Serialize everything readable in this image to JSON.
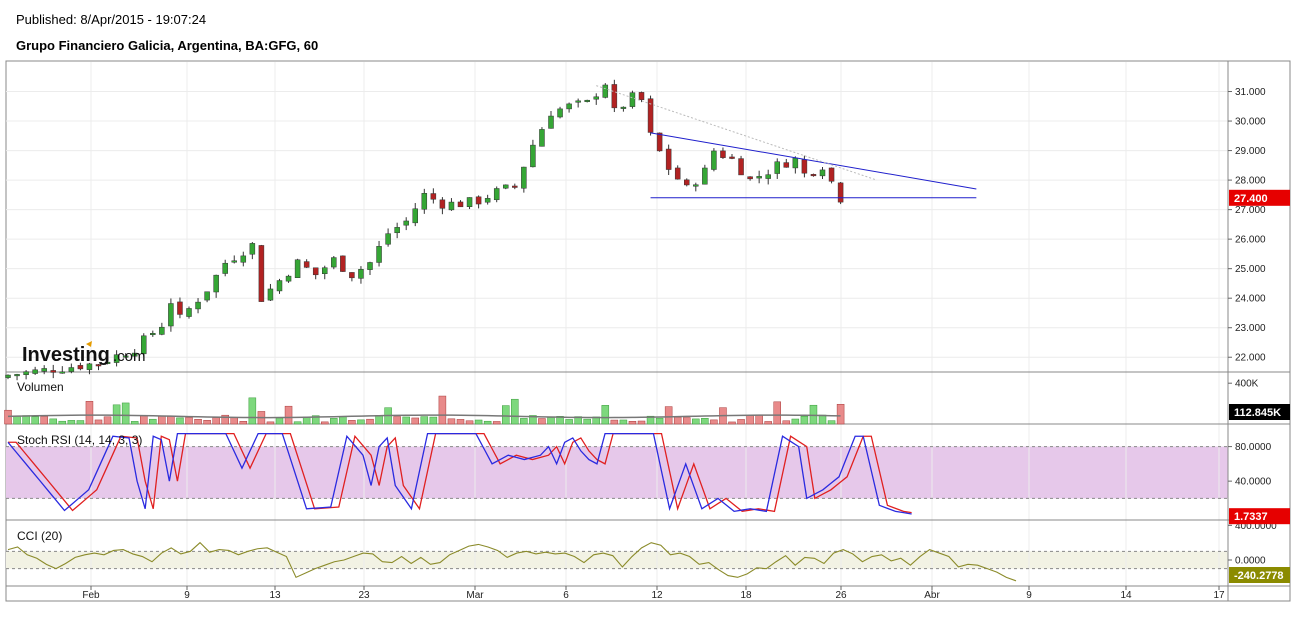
{
  "header": {
    "published": "Published: 8/Apr/2015 - 19:07:24",
    "title": "Grupo Financiero Galicia, Argentina, BA:GFG, 60"
  },
  "logo": {
    "brand": "Investing",
    "suffix": ".com"
  },
  "colors": {
    "up": "#35a635",
    "down": "#b22222",
    "trend": "#1f1fcc",
    "stoch_k": "#2a2ae0",
    "stoch_d": "#e02020",
    "cci": "#8b8b2a",
    "price_badge": "#e60000",
    "stoch_badge": "#e60000",
    "cci_badge": "#8b8b00",
    "vol_badge": "#000000",
    "stoch_band": "#e6c8ea"
  },
  "chart_data": [
    {
      "type": "candlestick",
      "title": "Grupo Financiero Galicia, Argentina, BA:GFG, 60",
      "ylim": [
        21.5,
        32.0
      ],
      "y_ticks": [
        "22.000",
        "23.000",
        "24.000",
        "25.000",
        "26.000",
        "27.000",
        "28.000",
        "29.000",
        "30.000",
        "31.000"
      ],
      "x_ticks": [
        "Feb",
        "9",
        "13",
        "23",
        "Mar",
        "6",
        "12",
        "18",
        "26",
        "Abr",
        "9",
        "14",
        "17"
      ],
      "last_value": "27.400",
      "close_path": [
        [
          0,
          21.4
        ],
        [
          10,
          21.8
        ],
        [
          14,
          22.3
        ],
        [
          17,
          23.1
        ],
        [
          18,
          23.9
        ],
        [
          19,
          23.3
        ],
        [
          22,
          24.3
        ],
        [
          24,
          25.2
        ],
        [
          27,
          25.8
        ],
        [
          28,
          24.0
        ],
        [
          30,
          24.6
        ],
        [
          32,
          25.2
        ],
        [
          34,
          24.8
        ],
        [
          36,
          25.3
        ],
        [
          38,
          24.8
        ],
        [
          40,
          25.2
        ],
        [
          42,
          26.2
        ],
        [
          44,
          26.6
        ],
        [
          46,
          27.5
        ],
        [
          48,
          27.2
        ],
        [
          50,
          27.2
        ],
        [
          52,
          27.3
        ],
        [
          54,
          27.6
        ],
        [
          56,
          27.8
        ],
        [
          58,
          29.2
        ],
        [
          60,
          30.3
        ],
        [
          62,
          30.5
        ],
        [
          64,
          30.6
        ],
        [
          66,
          31.3
        ],
        [
          67,
          30.3
        ],
        [
          69,
          30.8
        ],
        [
          70,
          30.7
        ],
        [
          71,
          29.5
        ],
        [
          73,
          28.4
        ],
        [
          75,
          27.7
        ],
        [
          77,
          28.3
        ],
        [
          78,
          29.0
        ],
        [
          80,
          28.7
        ],
        [
          82,
          28.0
        ],
        [
          84,
          28.3
        ],
        [
          85,
          28.5
        ],
        [
          87,
          28.7
        ],
        [
          88,
          28.2
        ],
        [
          90,
          28.5
        ],
        [
          92,
          27.4
        ]
      ],
      "trendlines": [
        {
          "from": [
            71,
            29.6
          ],
          "to": [
            107,
            27.7
          ]
        },
        {
          "from": [
            71,
            27.4
          ],
          "to": [
            107,
            27.4
          ]
        }
      ]
    },
    {
      "type": "bar",
      "title": "Volumen",
      "y_ticks": [
        "400K"
      ],
      "last_value": "112.845K",
      "ylim": [
        0,
        500
      ]
    },
    {
      "type": "line",
      "title": "Stoch RSI (14, 14, 3, 3)",
      "ylim": [
        -5,
        105
      ],
      "y_ticks": [
        "80.0000",
        "40.0000"
      ],
      "bands": [
        20,
        80
      ],
      "last_value": "1.7337",
      "k_path": [
        [
          0,
          85
        ],
        [
          4,
          40
        ],
        [
          7,
          6
        ],
        [
          10,
          30
        ],
        [
          13,
          92
        ],
        [
          15,
          90
        ],
        [
          16,
          40
        ],
        [
          17,
          8
        ],
        [
          18,
          92
        ],
        [
          19,
          88
        ],
        [
          20,
          40
        ],
        [
          21,
          95
        ],
        [
          27,
          95
        ],
        [
          29,
          55
        ],
        [
          31,
          95
        ],
        [
          34,
          95
        ],
        [
          37,
          8
        ],
        [
          40,
          10
        ],
        [
          42,
          92
        ],
        [
          44,
          70
        ],
        [
          45,
          35
        ],
        [
          46,
          80
        ],
        [
          47,
          90
        ],
        [
          48,
          35
        ],
        [
          50,
          8
        ],
        [
          52,
          95
        ],
        [
          58,
          95
        ],
        [
          60,
          60
        ],
        [
          62,
          70
        ],
        [
          64,
          65
        ],
        [
          66,
          70
        ],
        [
          67,
          80
        ],
        [
          68,
          60
        ],
        [
          69,
          85
        ],
        [
          70,
          90
        ],
        [
          71,
          75
        ],
        [
          72,
          65
        ],
        [
          73,
          60
        ],
        [
          74,
          95
        ],
        [
          80,
          95
        ],
        [
          82,
          8
        ],
        [
          84,
          60
        ],
        [
          86,
          8
        ],
        [
          88,
          20
        ],
        [
          90,
          5
        ],
        [
          92,
          8
        ],
        [
          94,
          5
        ],
        [
          96,
          92
        ],
        [
          98,
          80
        ],
        [
          99,
          20
        ],
        [
          101,
          30
        ],
        [
          103,
          45
        ],
        [
          105,
          92
        ],
        [
          106,
          92
        ],
        [
          108,
          12
        ],
        [
          110,
          5
        ],
        [
          112,
          2
        ]
      ]
    },
    {
      "type": "line",
      "title": "CCI (20)",
      "ylim": [
        -300,
        450
      ],
      "y_ticks": [
        "400.0000",
        "0.0000"
      ],
      "bands": [
        100,
        -100
      ],
      "last_value": "-240.2778",
      "values": [
        120,
        150,
        60,
        20,
        -50,
        -100,
        -40,
        30,
        60,
        80,
        60,
        110,
        120,
        70,
        40,
        -20,
        80,
        140,
        70,
        100,
        200,
        90,
        120,
        110,
        60,
        100,
        130,
        140,
        90,
        40,
        -200,
        -150,
        -100,
        -60,
        -20,
        0,
        40,
        80,
        70,
        -20,
        -30,
        40,
        -40,
        30,
        -50,
        -30,
        60,
        110,
        160,
        180,
        150,
        110,
        30,
        80,
        100,
        70,
        90,
        70,
        80,
        40,
        -30,
        60,
        80,
        50,
        -80,
        40,
        140,
        200,
        170,
        60,
        80,
        40,
        -50,
        -30,
        -110,
        -180,
        -200,
        -160,
        -90,
        -100,
        -20,
        50,
        -60,
        30,
        20,
        -40,
        80,
        120,
        70,
        -20,
        40,
        60,
        -10,
        20,
        -60,
        40,
        120,
        80,
        40,
        -80,
        -50,
        -60,
        -100,
        -140,
        -200,
        -240
      ]
    }
  ]
}
